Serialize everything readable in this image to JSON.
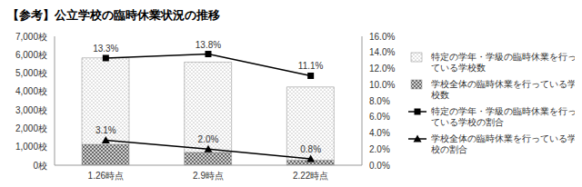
{
  "chart_data": {
    "type": "bar",
    "title": "【参考】公立学校の臨時休業状況の推移",
    "categories": [
      "1.26時点",
      "2.9時点",
      "2.22時点"
    ],
    "stacked": true,
    "grid": false,
    "legend": "right",
    "series": [
      {
        "name": "特定の学年・学級の臨時休業を行っている学校数",
        "type": "bar",
        "color": "#808080",
        "values": [
          4700,
          4900,
          3980
        ]
      },
      {
        "name": "学校全体の臨時休業を行っている学校数",
        "type": "bar",
        "color": "#606060",
        "values": [
          1130,
          700,
          270
        ]
      },
      {
        "name": "特定の学年・学級の臨時休業を行っている学校の割合",
        "type": "line",
        "axis": "y2",
        "color": "#000000",
        "marker": "square",
        "line_style": "solid",
        "values": [
          13.3,
          13.8,
          11.1
        ],
        "data_labels": true,
        "value_labels": [
          "13.3%",
          "13.8%",
          "11.1%"
        ]
      },
      {
        "name": "学校全体の臨時休業を行っている学校の割合",
        "type": "line",
        "axis": "y2",
        "color": "#000000",
        "marker": "triangle",
        "line_style": "solid",
        "values": [
          3.1,
          2.0,
          0.8
        ],
        "data_labels": true,
        "value_labels": [
          "3.1%",
          "2.0%",
          "0.8%"
        ]
      }
    ],
    "ylim": [
      0,
      7000
    ],
    "yticks": [
      {
        "value": 0,
        "label": "0校"
      },
      {
        "value": 1000,
        "label": "1,000校"
      },
      {
        "value": 2000,
        "label": "2,000校"
      },
      {
        "value": 3000,
        "label": "3,000校"
      },
      {
        "value": 4000,
        "label": "4,000校"
      },
      {
        "value": 5000,
        "label": "5,000校"
      },
      {
        "value": 6000,
        "label": "6,000校"
      },
      {
        "value": 7000,
        "label": "7,000校"
      }
    ],
    "y2lim": [
      0,
      16
    ],
    "y2ticks": [
      {
        "value": 0,
        "label": "0.0%"
      },
      {
        "value": 2,
        "label": "2.0%"
      },
      {
        "value": 4,
        "label": "4.0%"
      },
      {
        "value": 6,
        "label": "6.0%"
      },
      {
        "value": 8,
        "label": "8.0%"
      },
      {
        "value": 10,
        "label": "10.0%"
      },
      {
        "value": 12,
        "label": "12.0%"
      },
      {
        "value": 14,
        "label": "14.0%"
      },
      {
        "value": 16,
        "label": "16.0%"
      }
    ]
  }
}
